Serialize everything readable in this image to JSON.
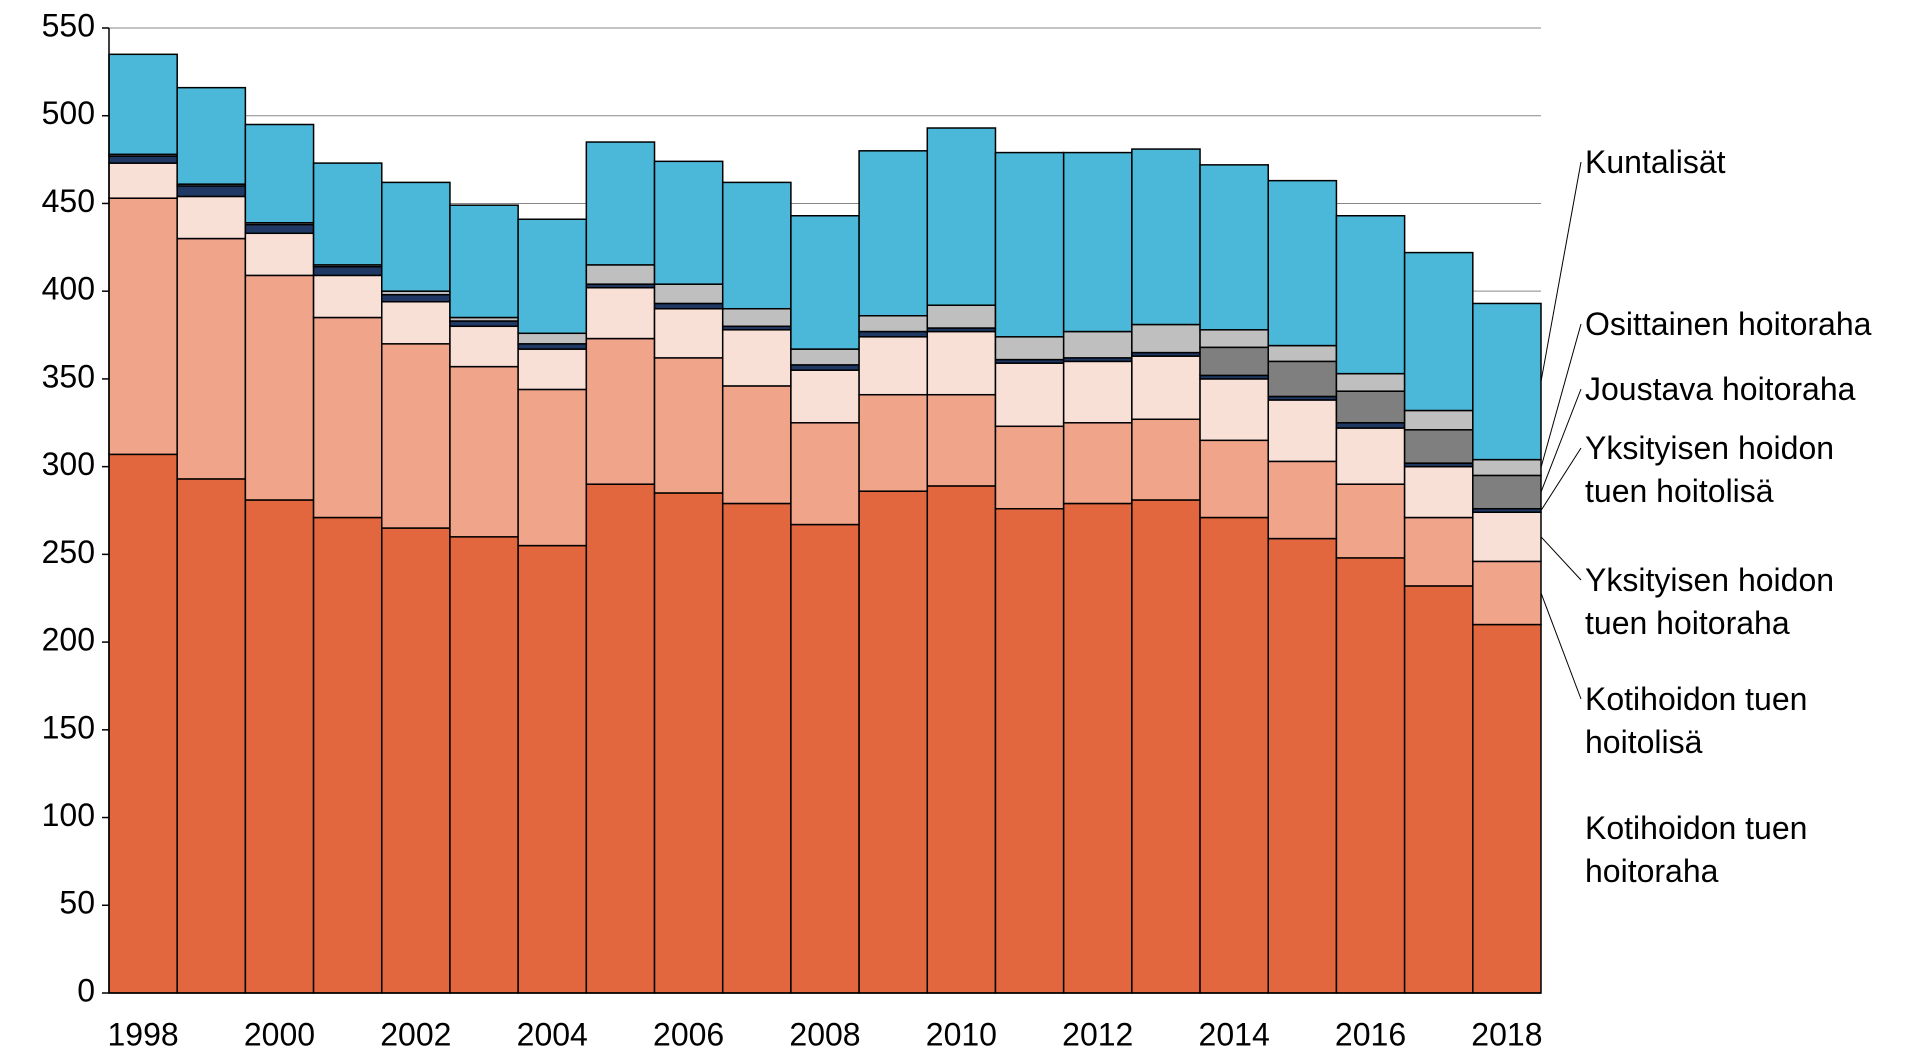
{
  "chart_data": {
    "type": "stacked-bar",
    "categories": [
      "1998",
      null,
      "2000",
      null,
      "2002",
      null,
      "2004",
      null,
      "2006",
      null,
      "2008",
      null,
      "2010",
      null,
      "2012",
      null,
      "2014",
      null,
      "2016",
      null,
      "2018"
    ],
    "ylim": [
      0,
      550
    ],
    "yticks": [
      0,
      50,
      100,
      150,
      200,
      250,
      300,
      350,
      400,
      450,
      500,
      550
    ],
    "grid": true,
    "series": [
      {
        "name": "Kotihoidon tuen hoitoraha",
        "color": "#e2673f",
        "values": [
          307,
          293,
          281,
          271,
          265,
          260,
          255,
          290,
          285,
          279,
          267,
          286,
          289,
          276,
          279,
          281,
          271,
          259,
          248,
          232,
          210
        ]
      },
      {
        "name": "Kotihoidon tuen hoitolisä",
        "color": "#f0a58a",
        "values": [
          146,
          137,
          128,
          114,
          105,
          97,
          89,
          83,
          77,
          67,
          58,
          55,
          52,
          47,
          46,
          46,
          44,
          44,
          42,
          39,
          36
        ]
      },
      {
        "name": "Yksityisen hoidon tuen hoitoraha",
        "color": "#f9e0d6",
        "values": [
          20,
          24,
          24,
          24,
          24,
          23,
          23,
          29,
          28,
          32,
          30,
          33,
          36,
          36,
          35,
          36,
          35,
          35,
          32,
          29,
          28
        ]
      },
      {
        "name": "Yksityisen hoidon tuen hoitolisä",
        "color": "#1f3864",
        "values": [
          4,
          6,
          5,
          5,
          4,
          3,
          3,
          2,
          3,
          2,
          3,
          3,
          2,
          2,
          2,
          2,
          2,
          2,
          3,
          2,
          2
        ]
      },
      {
        "name": "Joustava hoitoraha",
        "color": "#7f7f7f",
        "values": [
          0,
          0,
          0,
          0,
          0,
          0,
          0,
          0,
          0,
          0,
          0,
          0,
          0,
          0,
          0,
          0,
          16,
          20,
          18,
          19,
          19
        ]
      },
      {
        "name": "Osittainen hoitoraha",
        "color": "#bfbfbf",
        "values": [
          1,
          1,
          1,
          1,
          2,
          2,
          6,
          11,
          11,
          10,
          9,
          9,
          13,
          13,
          15,
          16,
          10,
          9,
          10,
          11,
          9
        ]
      },
      {
        "name": "Kuntalisät",
        "color": "#4bb8d9",
        "values": [
          57,
          55,
          56,
          58,
          62,
          64,
          65,
          70,
          70,
          72,
          76,
          94,
          101,
          105,
          102,
          100,
          94,
          94,
          90,
          90,
          89
        ]
      }
    ]
  }
}
